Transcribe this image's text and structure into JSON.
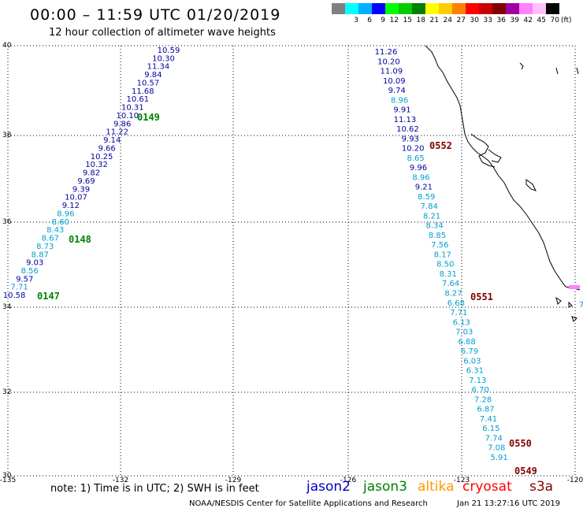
{
  "header": {
    "title": "00:00 – 11:59 UTC 01/20/2019",
    "subtitle": "12 hour collection of altimeter wave heights"
  },
  "colorbar": {
    "unit": "(ft)",
    "labels": [
      "",
      "3",
      "6",
      "9",
      "12",
      "15",
      "18",
      "21",
      "24",
      "27",
      "30",
      "33",
      "36",
      "39",
      "42",
      "45",
      "70"
    ],
    "colors": [
      "#808080",
      "#00ffff",
      "#00b0ff",
      "#0000ff",
      "#00ff00",
      "#00cc00",
      "#008000",
      "#ffff00",
      "#ffcc00",
      "#ff8000",
      "#ff0000",
      "#cc0000",
      "#800000",
      "#a000a0",
      "#ff80ff",
      "#ffc0ff",
      "#000000"
    ]
  },
  "axes": {
    "lat_labels": [
      "40",
      "38",
      "36",
      "34",
      "32",
      "30"
    ],
    "lon_labels": [
      "-135",
      "-132",
      "-129",
      "-126",
      "-123",
      "-120"
    ]
  },
  "colors": {
    "dark_blue": "#0000a0",
    "light_blue": "#00a0d0",
    "green_pass": "#008000",
    "red_pass": "#800000"
  },
  "tracks": [
    {
      "id": "west",
      "points": [
        {
          "v": "10.59",
          "c": "db"
        },
        {
          "v": "10.30",
          "c": "db"
        },
        {
          "v": "11.34",
          "c": "db"
        },
        {
          "v": "9.84",
          "c": "db"
        },
        {
          "v": "10.57",
          "c": "db"
        },
        {
          "v": "11.68",
          "c": "db"
        },
        {
          "v": "10.61",
          "c": "db"
        },
        {
          "v": "10.31",
          "c": "db"
        },
        {
          "v": "10.10",
          "c": "db"
        },
        {
          "v": "9.86",
          "c": "db"
        },
        {
          "v": "11.22",
          "c": "db"
        },
        {
          "v": "9.14",
          "c": "db"
        },
        {
          "v": "9.66",
          "c": "db"
        },
        {
          "v": "10.25",
          "c": "db"
        },
        {
          "v": "10.32",
          "c": "db"
        },
        {
          "v": "9.82",
          "c": "db"
        },
        {
          "v": "9.69",
          "c": "db"
        },
        {
          "v": "9.39",
          "c": "db"
        },
        {
          "v": "10.07",
          "c": "db"
        },
        {
          "v": "9.12",
          "c": "db"
        },
        {
          "v": "8.96",
          "c": "lb"
        },
        {
          "v": "8.60",
          "c": "lb"
        },
        {
          "v": "8.43",
          "c": "lb"
        },
        {
          "v": "8.67",
          "c": "lb"
        },
        {
          "v": "8.73",
          "c": "lb"
        },
        {
          "v": "8.87",
          "c": "lb"
        },
        {
          "v": "9.03",
          "c": "db"
        },
        {
          "v": "8.56",
          "c": "lb"
        },
        {
          "v": "9.57",
          "c": "db"
        },
        {
          "v": "7.71",
          "c": "lb"
        },
        {
          "v": "10.58",
          "c": "db"
        }
      ]
    },
    {
      "id": "east",
      "points": [
        {
          "v": "11.26",
          "c": "db"
        },
        {
          "v": "10.20",
          "c": "db"
        },
        {
          "v": "11.09",
          "c": "db"
        },
        {
          "v": "10.09",
          "c": "db"
        },
        {
          "v": "9.74",
          "c": "db"
        },
        {
          "v": "8.96",
          "c": "lb"
        },
        {
          "v": "9.91",
          "c": "db"
        },
        {
          "v": "11.13",
          "c": "db"
        },
        {
          "v": "10.62",
          "c": "db"
        },
        {
          "v": "9.93",
          "c": "db"
        },
        {
          "v": "10.20",
          "c": "db"
        },
        {
          "v": "8.65",
          "c": "lb"
        },
        {
          "v": "9.96",
          "c": "db"
        },
        {
          "v": "8.96",
          "c": "lb"
        },
        {
          "v": "9.21",
          "c": "db"
        },
        {
          "v": "8.59",
          "c": "lb"
        },
        {
          "v": "7.84",
          "c": "lb"
        },
        {
          "v": "8.21",
          "c": "lb"
        },
        {
          "v": "8.34",
          "c": "lb"
        },
        {
          "v": "8.85",
          "c": "lb"
        },
        {
          "v": "7.56",
          "c": "lb"
        },
        {
          "v": "8.17",
          "c": "lb"
        },
        {
          "v": "8.50",
          "c": "lb"
        },
        {
          "v": "8.31",
          "c": "lb"
        },
        {
          "v": "7.64",
          "c": "lb"
        },
        {
          "v": "8.27",
          "c": "lb"
        },
        {
          "v": "6.68",
          "c": "lb"
        },
        {
          "v": "7.71",
          "c": "lb"
        },
        {
          "v": "6.13",
          "c": "lb"
        },
        {
          "v": "7.03",
          "c": "lb"
        },
        {
          "v": "6.88",
          "c": "lb"
        },
        {
          "v": "6.79",
          "c": "lb"
        },
        {
          "v": "6.03",
          "c": "lb"
        },
        {
          "v": "6.31",
          "c": "lb"
        },
        {
          "v": "7.13",
          "c": "lb"
        },
        {
          "v": "6.70",
          "c": "lb"
        },
        {
          "v": "7.28",
          "c": "lb"
        },
        {
          "v": "6.87",
          "c": "lb"
        },
        {
          "v": "7.41",
          "c": "lb"
        },
        {
          "v": "6.15",
          "c": "lb"
        },
        {
          "v": "7.74",
          "c": "lb"
        },
        {
          "v": "7.08",
          "c": "lb"
        },
        {
          "v": "5.91",
          "c": "lb"
        }
      ]
    }
  ],
  "pass_labels": [
    {
      "text": "0149",
      "color": "green"
    },
    {
      "text": "0148",
      "color": "green"
    },
    {
      "text": "0147",
      "color": "green"
    },
    {
      "text": "0552",
      "color": "red"
    },
    {
      "text": "0551",
      "color": "red"
    },
    {
      "text": "0550",
      "color": "red"
    },
    {
      "text": "0549",
      "color": "red"
    }
  ],
  "edge_labels": [
    {
      "text": "7",
      "color": "lb"
    }
  ],
  "note": "note:  1) Time is in UTC;  2) SWH is in feet",
  "legend": [
    {
      "name": "jason2",
      "color": "#0000c0"
    },
    {
      "name": "jason3",
      "color": "#008000"
    },
    {
      "name": "altika",
      "color": "#ff9900"
    },
    {
      "name": "cryosat",
      "color": "#ff0000"
    },
    {
      "name": "s3a",
      "color": "#800000"
    }
  ],
  "footer": {
    "left": "NOAA/NESDIS Center for Satellite Applications and Research",
    "right": "Jan 21 13:27:16 UTC 2019"
  }
}
